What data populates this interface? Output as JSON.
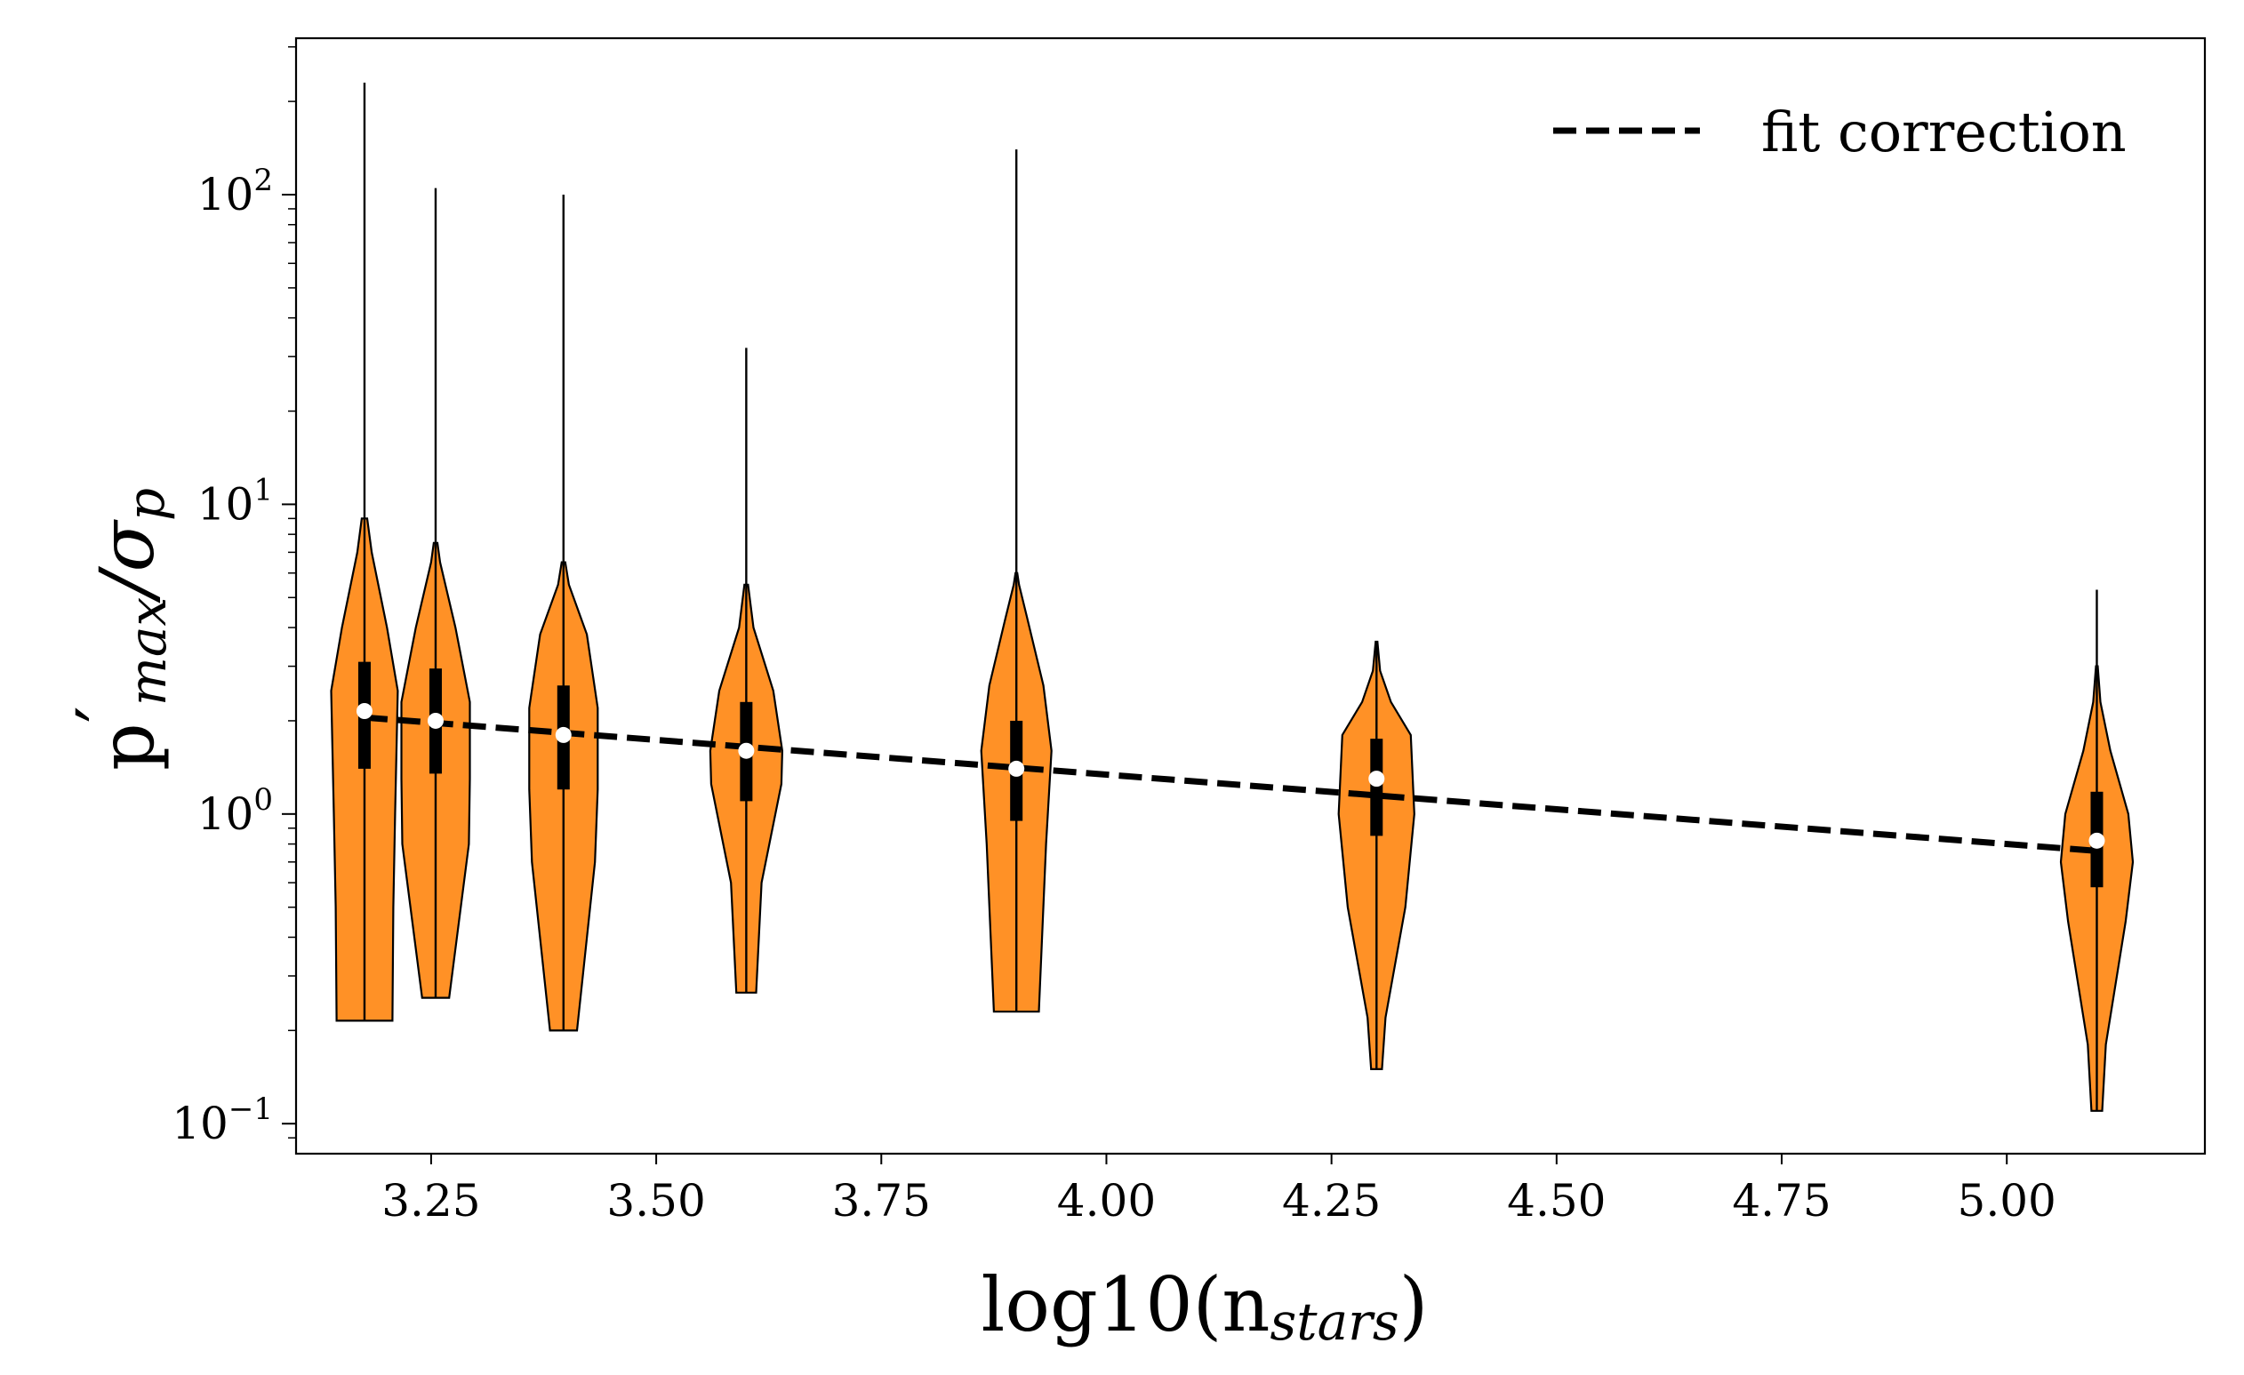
{
  "chart_data": {
    "type": "violin",
    "title": "",
    "xlabel": "log10(n_stars)",
    "xlabel_main": "log10(n",
    "xlabel_sub": "stars",
    "xlabel_close": ")",
    "ylabel": "p'_max / σ_p",
    "ylabel_p": "p",
    "ylabel_prime": "′",
    "ylabel_sub": "max",
    "ylabel_slash": "/σ",
    "ylabel_sub2": "p",
    "yscale": "log",
    "xlim": [
      3.1,
      5.22
    ],
    "ylim": [
      0.08,
      320
    ],
    "xticks": [
      3.25,
      3.5,
      3.75,
      4.0,
      4.25,
      4.5,
      4.75,
      5.0
    ],
    "xtick_labels": [
      "3.25",
      "3.50",
      "3.75",
      "4.00",
      "4.25",
      "4.50",
      "4.75",
      "5.00"
    ],
    "yticks": [
      {
        "value": 0.1,
        "base": "10",
        "exp": "−1"
      },
      {
        "value": 1,
        "base": "10",
        "exp": "0"
      },
      {
        "value": 10,
        "base": "10",
        "exp": "1"
      },
      {
        "value": 100,
        "base": "10",
        "exp": "2"
      }
    ],
    "violin_color": "#ff9126",
    "violins": [
      {
        "x": 3.176,
        "min": 0.215,
        "max": 230,
        "q1": 1.4,
        "q3": 3.1,
        "median": 2.15,
        "profile": [
          [
            0.215,
            0.031
          ],
          [
            0.5,
            0.032
          ],
          [
            1.0,
            0.034
          ],
          [
            2.5,
            0.037
          ],
          [
            4.0,
            0.025
          ],
          [
            7.0,
            0.008
          ],
          [
            9.0,
            0.003
          ]
        ]
      },
      {
        "x": 3.255,
        "min": 0.255,
        "max": 105,
        "q1": 1.35,
        "q3": 2.95,
        "median": 2.0,
        "profile": [
          [
            0.255,
            0.015
          ],
          [
            0.8,
            0.037
          ],
          [
            1.3,
            0.038
          ],
          [
            2.3,
            0.038
          ],
          [
            4.0,
            0.022
          ],
          [
            6.5,
            0.005
          ],
          [
            7.5,
            0.002
          ]
        ]
      },
      {
        "x": 3.397,
        "min": 0.2,
        "max": 100,
        "q1": 1.2,
        "q3": 2.6,
        "median": 1.8,
        "profile": [
          [
            0.2,
            0.015
          ],
          [
            0.7,
            0.035
          ],
          [
            1.2,
            0.038
          ],
          [
            2.2,
            0.038
          ],
          [
            3.8,
            0.026
          ],
          [
            5.5,
            0.006
          ],
          [
            6.5,
            0.002
          ]
        ]
      },
      {
        "x": 3.6,
        "min": 0.265,
        "max": 32,
        "q1": 1.1,
        "q3": 2.3,
        "median": 1.6,
        "profile": [
          [
            0.265,
            0.011
          ],
          [
            0.6,
            0.017
          ],
          [
            1.25,
            0.039
          ],
          [
            1.6,
            0.04
          ],
          [
            2.5,
            0.03
          ],
          [
            4.0,
            0.008
          ],
          [
            5.5,
            0.002
          ]
        ]
      },
      {
        "x": 3.9,
        "min": 0.23,
        "max": 140,
        "q1": 0.95,
        "q3": 2.0,
        "median": 1.4,
        "profile": [
          [
            0.23,
            0.025
          ],
          [
            0.8,
            0.033
          ],
          [
            1.6,
            0.039
          ],
          [
            2.6,
            0.03
          ],
          [
            4.3,
            0.012
          ],
          [
            5.5,
            0.003
          ],
          [
            6.0,
            0.001
          ]
        ]
      },
      {
        "x": 4.3,
        "min": 0.15,
        "max": 3.6,
        "q1": 0.85,
        "q3": 1.75,
        "median": 1.3,
        "profile": [
          [
            0.15,
            0.006
          ],
          [
            0.22,
            0.01
          ],
          [
            0.5,
            0.032
          ],
          [
            1.0,
            0.042
          ],
          [
            1.8,
            0.038
          ],
          [
            2.3,
            0.016
          ],
          [
            2.9,
            0.004
          ],
          [
            3.6,
            0.001
          ]
        ]
      },
      {
        "x": 5.1,
        "min": 0.11,
        "max": 5.3,
        "q1": 0.58,
        "q3": 1.18,
        "median": 0.82,
        "profile": [
          [
            0.11,
            0.006
          ],
          [
            0.18,
            0.01
          ],
          [
            0.45,
            0.032
          ],
          [
            0.7,
            0.04
          ],
          [
            1.0,
            0.035
          ],
          [
            1.6,
            0.015
          ],
          [
            2.3,
            0.004
          ],
          [
            3.0,
            0.001
          ]
        ]
      }
    ],
    "fit_line": {
      "label": "fit correction",
      "x": [
        3.176,
        5.1
      ],
      "y": [
        2.05,
        0.76
      ],
      "style": "dashed",
      "color": "#000000"
    },
    "legend": {
      "location": "top-right",
      "entries": [
        "fit correction"
      ]
    }
  }
}
